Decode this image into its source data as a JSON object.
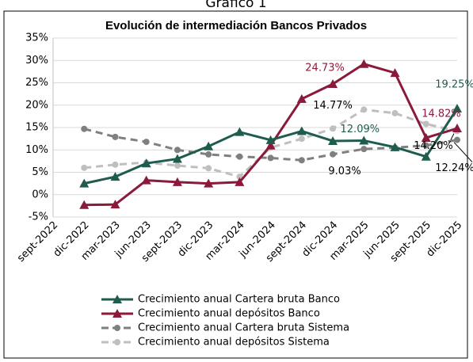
{
  "chart_data": {
    "type": "line",
    "heading": "Gráfico 1",
    "title": "Evolución de intermediación Bancos Privados",
    "categories": [
      "sept-2022",
      "dic-2022",
      "mar-2023",
      "jun-2023",
      "sept-2023",
      "dic-2023",
      "mar-2024",
      "jun-2024",
      "sept-2024",
      "dic-2024",
      "mar-2025",
      "jun-2025",
      "sept-2025",
      "dic-2025"
    ],
    "ylim": [
      -5,
      35
    ],
    "yticks": [
      {
        "value": -5,
        "label": "-5%"
      },
      {
        "value": 0,
        "label": "0%"
      },
      {
        "value": 5,
        "label": "5%"
      },
      {
        "value": 10,
        "label": "10%"
      },
      {
        "value": 15,
        "label": "15%"
      },
      {
        "value": 20,
        "label": "20%"
      },
      {
        "value": 25,
        "label": "25%"
      },
      {
        "value": 30,
        "label": "30%"
      },
      {
        "value": 35,
        "label": "35%"
      }
    ],
    "grid": true,
    "legend": "bottom",
    "series": [
      {
        "name": "Crecimiento anual Cartera bruta Banco",
        "color": "#1f5c4f",
        "marker": "triangle",
        "dashed": false,
        "values": [
          null,
          2.5,
          4,
          7,
          8,
          10.8,
          14,
          12.2,
          14.2,
          12,
          12.09,
          10.6,
          8.5,
          19.25
        ],
        "value_labels": [
          null,
          null,
          null,
          null,
          null,
          null,
          null,
          null,
          null,
          null,
          "12.09%",
          null,
          null,
          "19.25%"
        ]
      },
      {
        "name": "Crecimiento anual depósitos Banco",
        "color": "#8b1a3a",
        "marker": "triangle",
        "dashed": false,
        "values": [
          null,
          -2.3,
          -2.2,
          3.2,
          2.8,
          2.5,
          2.8,
          11,
          21.4,
          24.73,
          29.2,
          27.2,
          12.7,
          14.82
        ],
        "value_labels": [
          null,
          null,
          null,
          null,
          null,
          null,
          null,
          null,
          null,
          "24.73%",
          null,
          null,
          null,
          "14.82%"
        ]
      },
      {
        "name": "Crecimiento anual Cartera bruta Sistema",
        "color": "#7f7f7f",
        "marker": "circle",
        "dashed": true,
        "values": [
          null,
          14.7,
          12.9,
          11.8,
          10,
          9,
          8.5,
          8.2,
          7.7,
          9.03,
          10.2,
          10.5,
          11,
          12.24
        ],
        "value_labels": [
          null,
          null,
          null,
          null,
          null,
          null,
          null,
          null,
          null,
          "9.03%",
          null,
          null,
          null,
          "12.24%"
        ]
      },
      {
        "name": "Crecimiento anual depósitos Sistema",
        "color": "#bfbfbf",
        "marker": "circle",
        "dashed": true,
        "values": [
          null,
          6,
          6.7,
          7.2,
          6.5,
          5.9,
          4,
          10.5,
          12.5,
          14.77,
          19,
          18.2,
          15.8,
          14.2
        ],
        "value_labels": [
          null,
          null,
          null,
          null,
          null,
          null,
          null,
          null,
          null,
          "14.77%",
          null,
          null,
          null,
          "14.20%"
        ]
      }
    ]
  }
}
